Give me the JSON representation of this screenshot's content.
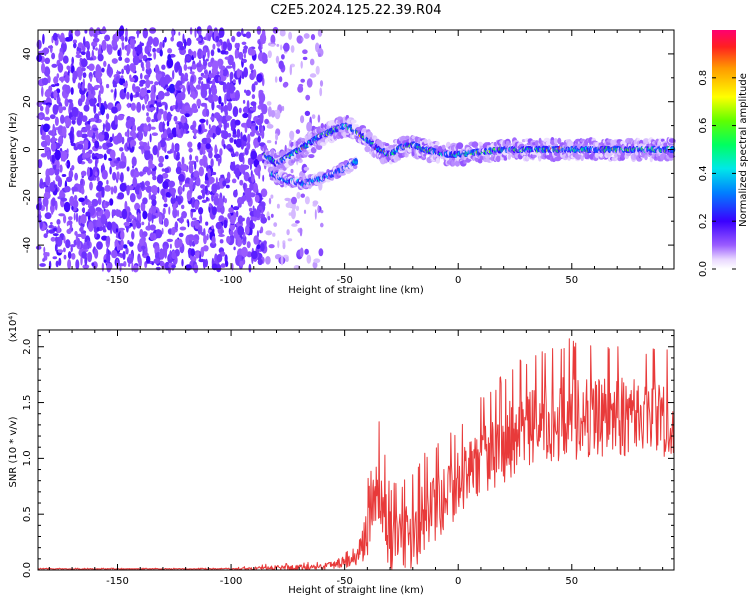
{
  "title": "C2E5.2024.125.22.39.R04",
  "colors": {
    "snr_line": "#e83a3a",
    "axis": "#000000",
    "background": "#ffffff"
  },
  "chart_data": [
    {
      "type": "heatmap",
      "xlabel": "Height of straight line (km)",
      "ylabel": "Frequency (Hz)",
      "xlim": [
        -185,
        95
      ],
      "ylim": [
        -50,
        50
      ],
      "x_ticks": [
        -150,
        -100,
        -50,
        0,
        50
      ],
      "y_ticks": [
        -40,
        -20,
        0,
        20,
        40
      ],
      "colorbar": {
        "label": "Normalized spectral amplitude",
        "range": [
          0,
          1
        ],
        "ticks": [
          "0.0",
          "0.2",
          "0.4",
          "0.6",
          "0.8"
        ],
        "colormap": "rainbow (white-violet-blue-cyan-green-yellow-red)"
      },
      "features": [
        {
          "name": "noise",
          "x_range": [
            -185,
            -85
          ],
          "freq_range": [
            -50,
            50
          ],
          "amplitude": 0.1
        },
        {
          "name": "sparse noise",
          "x_range": [
            -85,
            -60
          ],
          "freq_range": [
            -50,
            50
          ],
          "amplitude": 0.05
        },
        {
          "name": "signal ridge",
          "points": [
            [
              -85,
              -2
            ],
            [
              -80,
              -6
            ],
            [
              -75,
              -3
            ],
            [
              -70,
              0
            ],
            [
              -65,
              3
            ],
            [
              -60,
              6
            ],
            [
              -55,
              8
            ],
            [
              -50,
              10
            ],
            [
              -45,
              8
            ],
            [
              -40,
              4
            ],
            [
              -35,
              0
            ],
            [
              -30,
              -2
            ],
            [
              -25,
              1
            ],
            [
              -20,
              2
            ],
            [
              -15,
              0
            ],
            [
              -10,
              -1
            ],
            [
              -5,
              -2
            ],
            [
              0,
              -2
            ],
            [
              10,
              -1
            ],
            [
              20,
              0
            ],
            [
              40,
              0
            ],
            [
              60,
              0
            ],
            [
              80,
              0
            ],
            [
              95,
              0
            ]
          ],
          "amplitude_range": [
            0.3,
            0.95
          ]
        },
        {
          "name": "secondary arc",
          "points": [
            [
              -82,
              -10
            ],
            [
              -75,
              -13
            ],
            [
              -68,
              -14
            ],
            [
              -60,
              -12
            ],
            [
              -55,
              -10
            ],
            [
              -50,
              -8
            ],
            [
              -45,
              -5
            ]
          ],
          "amplitude_range": [
            0.3,
            0.6
          ]
        }
      ]
    },
    {
      "type": "line",
      "xlabel": "Height of straight line (km)",
      "ylabel": "SNR (10 * v/v)",
      "yscale_label": "(x10⁴)",
      "xlim": [
        -185,
        95
      ],
      "ylim": [
        0,
        2.15
      ],
      "x_ticks": [
        -150,
        -100,
        -50,
        0,
        50
      ],
      "y_ticks": [
        "0.0",
        "0.5",
        "1.0",
        "1.5",
        "2.0"
      ],
      "series": [
        {
          "color": "#e83a3a",
          "envelope": {
            "x": [
              -185,
              -100,
              -80,
              -60,
              -45,
              -40,
              -37,
              -34,
              -30,
              -25,
              -20,
              -15,
              -10,
              -5,
              0,
              5,
              10,
              20,
              30,
              40,
              50,
              60,
              70,
              80,
              90,
              95
            ],
            "mean": [
              0.01,
              0.01,
              0.02,
              0.03,
              0.1,
              0.35,
              0.8,
              0.6,
              0.3,
              0.3,
              0.35,
              0.45,
              0.55,
              0.65,
              0.8,
              0.9,
              1.0,
              1.15,
              1.3,
              1.35,
              1.4,
              1.4,
              1.4,
              1.4,
              1.4,
              1.4
            ],
            "amp": [
              0.005,
              0.005,
              0.03,
              0.03,
              0.08,
              0.3,
              0.6,
              0.5,
              0.35,
              0.35,
              0.4,
              0.45,
              0.4,
              0.4,
              0.35,
              0.35,
              0.4,
              0.45,
              0.45,
              0.45,
              0.5,
              0.45,
              0.45,
              0.45,
              0.45,
              0.45
            ]
          }
        }
      ]
    }
  ]
}
